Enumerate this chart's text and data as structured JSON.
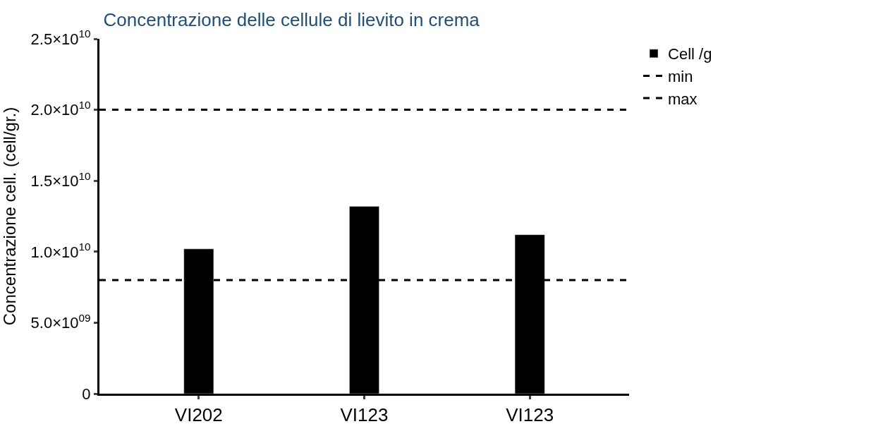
{
  "chart_data": {
    "type": "bar",
    "title": "Concentrazione delle cellule di lievito in crema",
    "ylabel": "Concentrazione cell. (cell/gr.)",
    "categories": [
      "VI202",
      "VI123",
      "VI123"
    ],
    "series": [
      {
        "name": "Cell /g",
        "color": "#000000",
        "values": [
          10200000000,
          13200000000,
          11200000000
        ]
      }
    ],
    "ref_lines": [
      {
        "axis": "y",
        "value": 8000000000,
        "label": "min",
        "color": "#000000",
        "line_style": "dashed"
      },
      {
        "axis": "y",
        "value": 20000000000,
        "label": "max",
        "color": "#000000",
        "line_style": "dashed"
      }
    ],
    "ylim": [
      0,
      25000000000
    ],
    "yticks": [
      0,
      {
        "value": 5000000000,
        "label": "5.0×10$^{09}$"
      },
      {
        "value": 10000000000,
        "label": "1.0×10$^{10}$"
      },
      {
        "value": 15000000000,
        "label": "1.5×10$^{10}$"
      },
      {
        "value": 20000000000,
        "label": "2.0×10$^{10}$"
      },
      {
        "value": 25000000000,
        "label": "2.5×10$^{10}$"
      }
    ],
    "legend": "top right"
  }
}
